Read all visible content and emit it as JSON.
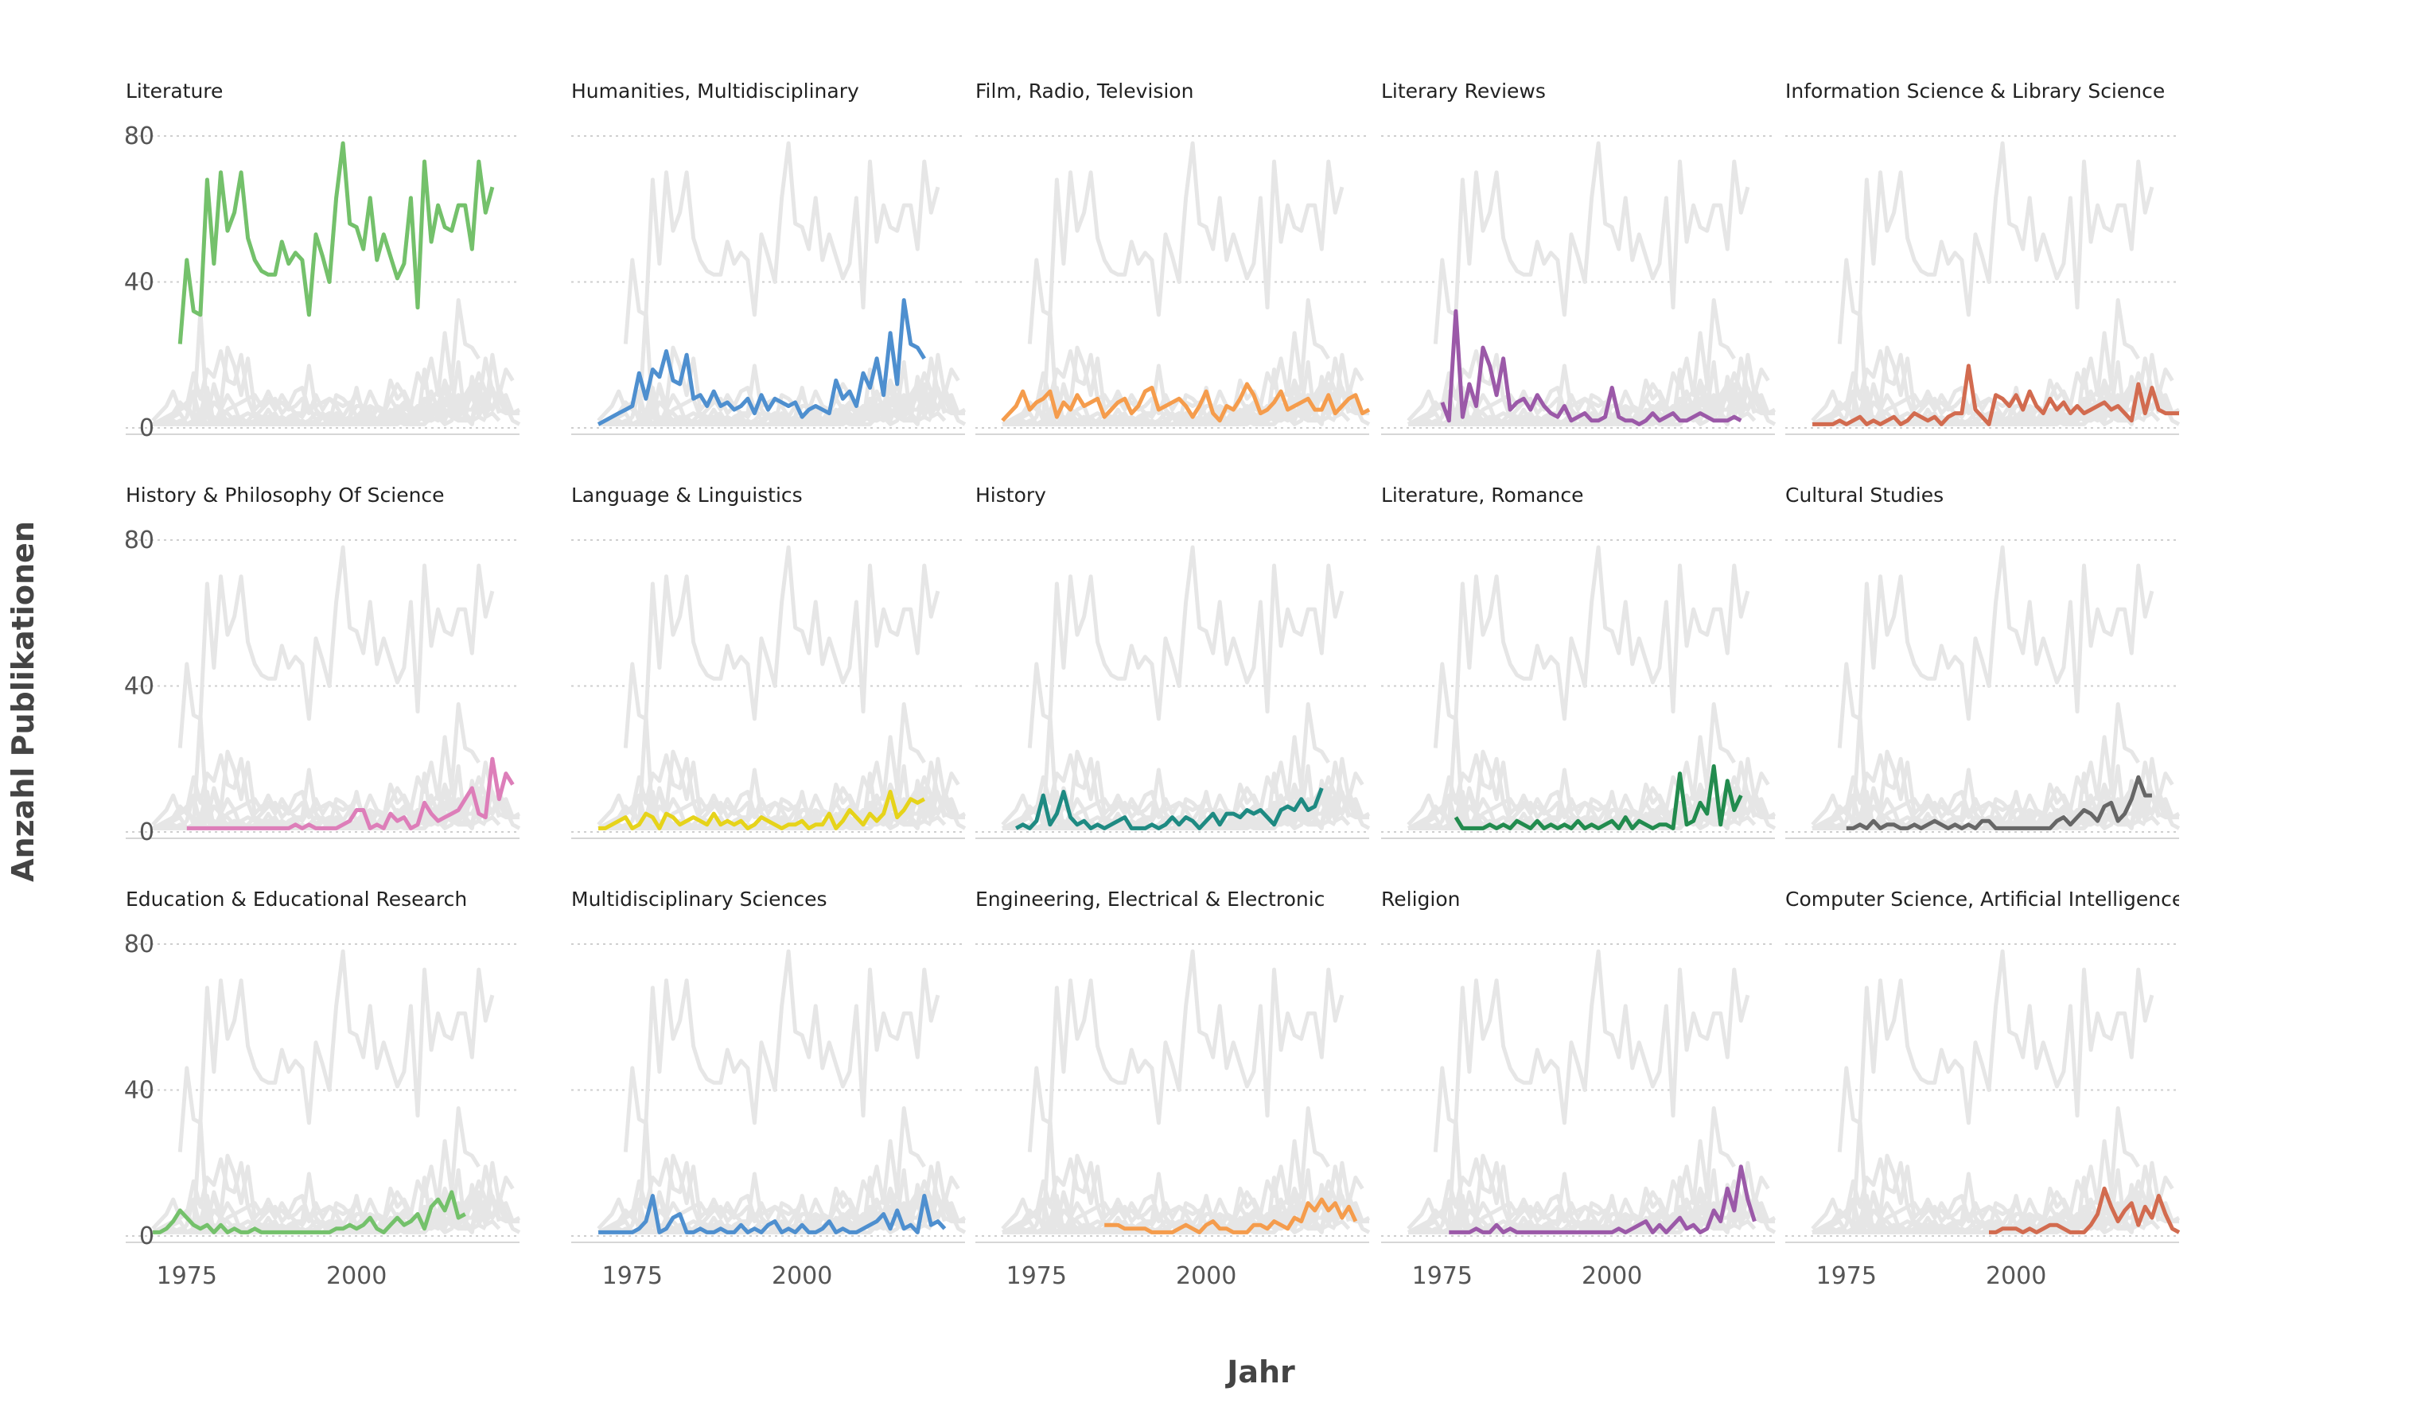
{
  "chart_data": {
    "type": "line",
    "xlabel": "Jahr",
    "ylabel": "Anzahl Publikationen",
    "xlim": [
      1966,
      2024
    ],
    "ylim": [
      0,
      85
    ],
    "x_ticks": [
      1975,
      2000
    ],
    "y_ticks": [
      0,
      40,
      80
    ],
    "grid": "horizontal dotted",
    "background_color": "#e6e6e6",
    "years": [
      1970,
      1971,
      1972,
      1973,
      1974,
      1975,
      1976,
      1977,
      1978,
      1979,
      1980,
      1981,
      1982,
      1983,
      1984,
      1985,
      1986,
      1987,
      1988,
      1989,
      1990,
      1991,
      1992,
      1993,
      1994,
      1995,
      1996,
      1997,
      1998,
      1999,
      2000,
      2001,
      2002,
      2003,
      2004,
      2005,
      2006,
      2007,
      2008,
      2009,
      2010,
      2011,
      2012,
      2013,
      2014,
      2015,
      2016,
      2017,
      2018,
      2019,
      2020,
      2021,
      2022
    ],
    "panels": [
      {
        "title": "Literature",
        "color": "#74c16b",
        "start": 1974,
        "values": [
          23,
          46,
          32,
          31,
          68,
          45,
          70,
          54,
          59,
          70,
          52,
          46,
          43,
          42,
          42,
          51,
          45,
          48,
          46,
          31,
          53,
          47,
          40,
          63,
          78,
          56,
          55,
          49,
          63,
          46,
          53,
          47,
          41,
          45,
          63,
          33,
          73,
          51,
          61,
          55,
          54,
          61,
          61,
          49,
          73,
          59,
          66
        ]
      },
      {
        "title": "Humanities, Multidisciplinary",
        "color": "#4e8fcf",
        "start": 1970,
        "values": [
          1,
          2,
          3,
          4,
          5,
          6,
          15,
          8,
          16,
          14,
          21,
          13,
          12,
          20,
          8,
          9,
          6,
          10,
          6,
          7,
          5,
          6,
          8,
          4,
          9,
          5,
          8,
          7,
          6,
          7,
          3,
          5,
          6,
          5,
          4,
          13,
          8,
          10,
          6,
          15,
          11,
          19,
          9,
          26,
          12,
          35,
          23,
          22,
          19
        ]
      },
      {
        "title": "Film, Radio, Television",
        "color": "#f59c4c",
        "start": 1970,
        "values": [
          2,
          4,
          6,
          10,
          5,
          7,
          8,
          10,
          3,
          7,
          5,
          9,
          6,
          7,
          8,
          3,
          5,
          7,
          8,
          4,
          6,
          10,
          11,
          5,
          6,
          7,
          8,
          6,
          3,
          6,
          10,
          4,
          2,
          6,
          5,
          8,
          12,
          9,
          4,
          5,
          7,
          10,
          5,
          6,
          7,
          8,
          5,
          5,
          9,
          4,
          6,
          8,
          9,
          4,
          5
        ]
      },
      {
        "title": "Literary Reviews",
        "color": "#9b59a8",
        "start": 1975,
        "values": [
          7,
          2,
          32,
          3,
          12,
          6,
          22,
          17,
          9,
          19,
          5,
          7,
          8,
          5,
          9,
          6,
          4,
          3,
          6,
          2,
          3,
          4,
          2,
          2,
          3,
          11,
          3,
          2,
          2,
          1,
          2,
          4,
          2,
          3,
          4,
          2,
          2,
          3,
          4,
          3,
          2,
          2,
          2,
          3,
          2
        ]
      },
      {
        "title": "Information Science & Library Science",
        "color": "#d26b4f",
        "start": 1970,
        "values": [
          1,
          1,
          1,
          1,
          2,
          1,
          2,
          3,
          1,
          2,
          1,
          2,
          3,
          1,
          2,
          4,
          3,
          2,
          3,
          1,
          3,
          4,
          4,
          17,
          5,
          3,
          1,
          9,
          8,
          6,
          9,
          5,
          10,
          6,
          4,
          8,
          5,
          7,
          4,
          6,
          4,
          5,
          6,
          7,
          5,
          6,
          4,
          2,
          12,
          4,
          11,
          5,
          4,
          4,
          4
        ]
      },
      {
        "title": "History & Philosophy Of Science",
        "color": "#dd7eb9",
        "start": 1975,
        "values": [
          1,
          1,
          1,
          1,
          1,
          1,
          1,
          1,
          1,
          1,
          1,
          1,
          1,
          1,
          1,
          1,
          2,
          1,
          2,
          1,
          1,
          1,
          1,
          2,
          3,
          6,
          6,
          1,
          2,
          1,
          5,
          3,
          4,
          1,
          2,
          8,
          5,
          3,
          4,
          5,
          6,
          9,
          12,
          5,
          4,
          20,
          9,
          16,
          13
        ]
      },
      {
        "title": "Language & Linguistics",
        "color": "#e6d31a",
        "start": 1970,
        "values": [
          1,
          1,
          2,
          3,
          4,
          1,
          2,
          5,
          4,
          1,
          5,
          4,
          2,
          3,
          4,
          3,
          2,
          5,
          2,
          3,
          2,
          3,
          1,
          2,
          4,
          3,
          2,
          1,
          2,
          2,
          3,
          1,
          2,
          2,
          5,
          1,
          3,
          6,
          4,
          2,
          5,
          3,
          5,
          11,
          4,
          6,
          9,
          8,
          9
        ]
      },
      {
        "title": "History",
        "color": "#1e8a82",
        "start": 1972,
        "values": [
          1,
          2,
          1,
          3,
          10,
          2,
          5,
          11,
          4,
          2,
          3,
          1,
          2,
          1,
          2,
          3,
          4,
          1,
          1,
          1,
          2,
          1,
          2,
          4,
          2,
          4,
          3,
          1,
          3,
          5,
          2,
          5,
          5,
          4,
          6,
          5,
          6,
          4,
          2,
          6,
          7,
          6,
          9,
          6,
          7,
          12
        ]
      },
      {
        "title": "Literature, Romance",
        "color": "#228b4e",
        "start": 1977,
        "values": [
          4,
          1,
          1,
          1,
          1,
          2,
          1,
          2,
          1,
          3,
          2,
          1,
          3,
          1,
          2,
          1,
          2,
          1,
          3,
          1,
          2,
          1,
          2,
          3,
          1,
          4,
          1,
          3,
          2,
          1,
          2,
          2,
          1,
          16,
          2,
          3,
          8,
          5,
          18,
          2,
          14,
          6,
          10
        ]
      },
      {
        "title": "Cultural Studies",
        "color": "#666666",
        "start": 1975,
        "values": [
          1,
          1,
          2,
          1,
          3,
          1,
          2,
          2,
          1,
          1,
          2,
          1,
          2,
          3,
          2,
          1,
          2,
          1,
          2,
          1,
          3,
          3,
          1,
          1,
          1,
          1,
          1,
          1,
          1,
          1,
          1,
          3,
          4,
          2,
          4,
          6,
          5,
          3,
          7,
          8,
          3,
          5,
          9,
          15,
          10,
          10
        ]
      },
      {
        "title": "Education & Educational Research",
        "color": "#74c16b",
        "start": 1970,
        "values": [
          1,
          1,
          2,
          4,
          7,
          5,
          3,
          2,
          3,
          1,
          3,
          1,
          2,
          1,
          1,
          2,
          1,
          1,
          1,
          1,
          1,
          1,
          1,
          1,
          1,
          1,
          1,
          2,
          2,
          3,
          2,
          3,
          5,
          2,
          1,
          3,
          5,
          3,
          4,
          6,
          2,
          8,
          10,
          7,
          12,
          5,
          6
        ]
      },
      {
        "title": "Multidisciplinary Sciences",
        "color": "#4e8fcf",
        "start": 1970,
        "values": [
          1,
          1,
          1,
          1,
          1,
          1,
          2,
          4,
          11,
          1,
          2,
          5,
          6,
          1,
          1,
          2,
          1,
          1,
          2,
          1,
          1,
          3,
          1,
          2,
          1,
          3,
          4,
          1,
          2,
          1,
          3,
          1,
          1,
          2,
          4,
          1,
          2,
          1,
          1,
          2,
          3,
          4,
          6,
          2,
          7,
          2,
          3,
          1,
          11,
          3,
          4,
          2
        ]
      },
      {
        "title": "Engineering, Electrical & Electronic",
        "color": "#f59c4c",
        "start": 1985,
        "values": [
          3,
          3,
          3,
          2,
          2,
          2,
          2,
          1,
          1,
          1,
          1,
          2,
          3,
          2,
          1,
          3,
          4,
          2,
          2,
          1,
          1,
          1,
          3,
          3,
          2,
          4,
          3,
          2,
          5,
          4,
          9,
          7,
          10,
          7,
          9,
          5,
          8,
          4
        ]
      },
      {
        "title": "Religion",
        "color": "#9b59a8",
        "start": 1976,
        "values": [
          1,
          1,
          1,
          1,
          2,
          1,
          1,
          3,
          1,
          2,
          1,
          1,
          1,
          1,
          1,
          1,
          1,
          1,
          1,
          1,
          1,
          1,
          1,
          1,
          1,
          2,
          1,
          2,
          3,
          4,
          1,
          3,
          1,
          3,
          5,
          2,
          3,
          1,
          2,
          7,
          4,
          13,
          7,
          19,
          10,
          4
        ]
      },
      {
        "title": "Computer Science, Artificial Intelligence",
        "color": "#d26b4f",
        "start": 1996,
        "values": [
          1,
          1,
          2,
          2,
          2,
          1,
          2,
          1,
          2,
          3,
          3,
          2,
          1,
          1,
          1,
          3,
          6,
          13,
          8,
          4,
          7,
          9,
          3,
          8,
          5,
          11,
          6,
          2,
          1
        ]
      }
    ]
  }
}
